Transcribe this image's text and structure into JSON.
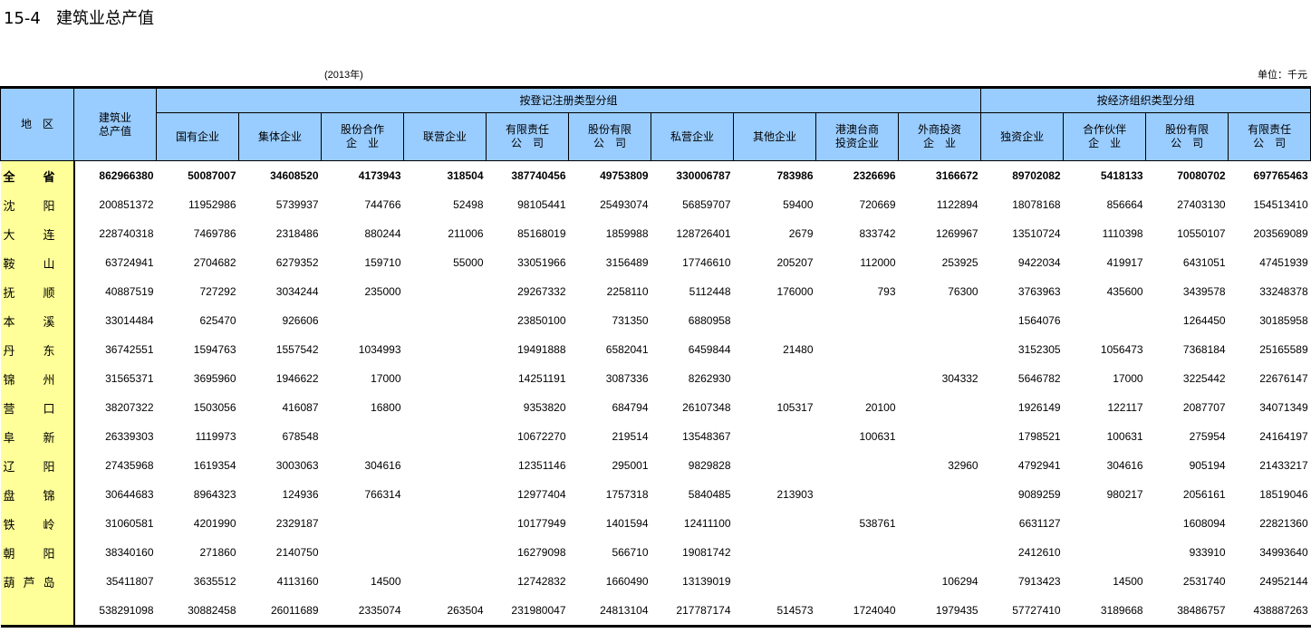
{
  "title": "15-4   建筑业总产值",
  "year": "(2013年)",
  "unit": "单位：千元",
  "header": {
    "region": "地　区",
    "total": [
      "建筑业",
      "总产值"
    ],
    "group1": "按登记注册类型分组",
    "group2": "按经济组织类型分组",
    "group1_cols": [
      [
        "国有企业"
      ],
      [
        "集体企业"
      ],
      [
        "股份合作",
        "企　业"
      ],
      [
        "联营企业"
      ],
      [
        "有限责任",
        "公　司"
      ],
      [
        "股份有限",
        "公　司"
      ],
      [
        "私营企业"
      ],
      [
        "其他企业"
      ],
      [
        "港澳台商",
        "投资企业"
      ],
      [
        "外商投资",
        "企　业"
      ]
    ],
    "group2_cols": [
      [
        "独资企业"
      ],
      [
        "合作伙伴",
        "企　业"
      ],
      [
        "股份有限",
        "公　司"
      ],
      [
        "有限责任",
        "公　司"
      ]
    ]
  },
  "rows": [
    {
      "region": "全省",
      "values": [
        "862966380",
        "50087007",
        "34608520",
        "4173943",
        "318504",
        "387740456",
        "49753809",
        "330006787",
        "783986",
        "2326696",
        "3166672",
        "89702082",
        "5418133",
        "70080702",
        "697765463"
      ]
    },
    {
      "region": "沈阳",
      "values": [
        "200851372",
        "11952986",
        "5739937",
        "744766",
        "52498",
        "98105441",
        "25493074",
        "56859707",
        "59400",
        "720669",
        "1122894",
        "18078168",
        "856664",
        "27403130",
        "154513410"
      ]
    },
    {
      "region": "大连",
      "values": [
        "228740318",
        "7469786",
        "2318486",
        "880244",
        "211006",
        "85168019",
        "1859988",
        "128726401",
        "2679",
        "833742",
        "1269967",
        "13510724",
        "1110398",
        "10550107",
        "203569089"
      ]
    },
    {
      "region": "鞍山",
      "values": [
        "63724941",
        "2704682",
        "6279352",
        "159710",
        "55000",
        "33051966",
        "3156489",
        "17746610",
        "205207",
        "112000",
        "253925",
        "9422034",
        "419917",
        "6431051",
        "47451939"
      ]
    },
    {
      "region": "抚顺",
      "values": [
        "40887519",
        "727292",
        "3034244",
        "235000",
        "",
        "29267332",
        "2258110",
        "5112448",
        "176000",
        "793",
        "76300",
        "3763963",
        "435600",
        "3439578",
        "33248378"
      ]
    },
    {
      "region": "本溪",
      "values": [
        "33014484",
        "625470",
        "926606",
        "",
        "",
        "23850100",
        "731350",
        "6880958",
        "",
        "",
        "",
        "1564076",
        "",
        "1264450",
        "30185958"
      ]
    },
    {
      "region": "丹东",
      "values": [
        "36742551",
        "1594763",
        "1557542",
        "1034993",
        "",
        "19491888",
        "6582041",
        "6459844",
        "21480",
        "",
        "",
        "3152305",
        "1056473",
        "7368184",
        "25165589"
      ]
    },
    {
      "region": "锦州",
      "values": [
        "31565371",
        "3695960",
        "1946622",
        "17000",
        "",
        "14251191",
        "3087336",
        "8262930",
        "",
        "",
        "304332",
        "5646782",
        "17000",
        "3225442",
        "22676147"
      ]
    },
    {
      "region": "营口",
      "values": [
        "38207322",
        "1503056",
        "416087",
        "16800",
        "",
        "9353820",
        "684794",
        "26107348",
        "105317",
        "20100",
        "",
        "1926149",
        "122117",
        "2087707",
        "34071349"
      ]
    },
    {
      "region": "阜新",
      "values": [
        "26339303",
        "1119973",
        "678548",
        "",
        "",
        "10672270",
        "219514",
        "13548367",
        "",
        "100631",
        "",
        "1798521",
        "100631",
        "275954",
        "24164197"
      ]
    },
    {
      "region": "辽阳",
      "values": [
        "27435968",
        "1619354",
        "3003063",
        "304616",
        "",
        "12351146",
        "295001",
        "9829828",
        "",
        "",
        "32960",
        "4792941",
        "304616",
        "905194",
        "21433217"
      ]
    },
    {
      "region": "盘锦",
      "values": [
        "30644683",
        "8964323",
        "124936",
        "766314",
        "",
        "12977404",
        "1757318",
        "5840485",
        "213903",
        "",
        "",
        "9089259",
        "980217",
        "2056161",
        "18519046"
      ]
    },
    {
      "region": "铁岭",
      "values": [
        "31060581",
        "4201990",
        "2329187",
        "",
        "",
        "10177949",
        "1401594",
        "12411100",
        "",
        "538761",
        "",
        "6631127",
        "",
        "1608094",
        "22821360"
      ]
    },
    {
      "region": "朝阳",
      "values": [
        "38340160",
        "271860",
        "2140750",
        "",
        "",
        "16279098",
        "566710",
        "19081742",
        "",
        "",
        "",
        "2412610",
        "",
        "933910",
        "34993640"
      ]
    },
    {
      "region": "葫芦岛",
      "values": [
        "35411807",
        "3635512",
        "4113160",
        "14500",
        "",
        "12742832",
        "1660490",
        "13139019",
        "",
        "",
        "106294",
        "7913423",
        "14500",
        "2531740",
        "24952144"
      ]
    },
    {
      "region": "",
      "values": [
        "538291098",
        "30882458",
        "26011689",
        "2335074",
        "263504",
        "231980047",
        "24813104",
        "217787174",
        "514573",
        "1724040",
        "1979435",
        "57727410",
        "3189668",
        "38486757",
        "438887263"
      ]
    }
  ]
}
